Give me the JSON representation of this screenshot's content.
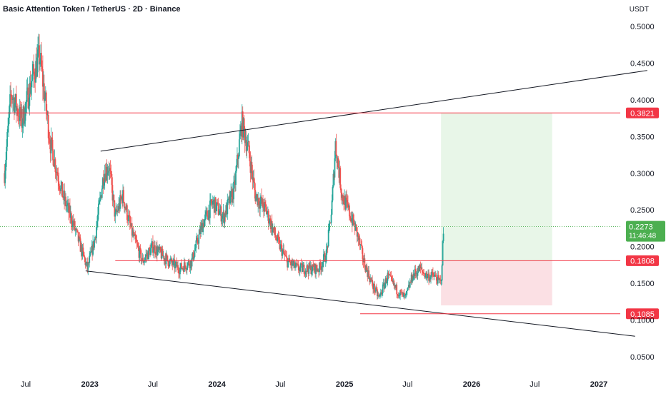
{
  "chart_data": {
    "type": "candlestick",
    "title": "Basic Attention Token / TetherUS · 2D · Binance",
    "unit": "USDT",
    "ylim": [
      0.02,
      0.52
    ],
    "y_ticks": [
      "0.5000",
      "0.4500",
      "0.4000",
      "0.3500",
      "0.3000",
      "0.2500",
      "0.2000",
      "0.1500",
      "0.1000",
      "0.0500"
    ],
    "y_tick_values": [
      0.5,
      0.45,
      0.4,
      0.35,
      0.3,
      0.25,
      0.2,
      0.15,
      0.1,
      0.05
    ],
    "x_ticks": [
      "Jul",
      "2023",
      "Jul",
      "2024",
      "Jul",
      "2025",
      "Jul",
      "2026",
      "Jul",
      "2027"
    ],
    "x_tick_dates": [
      "2022-07-01",
      "2023-01-01",
      "2023-07-01",
      "2024-01-01",
      "2024-07-01",
      "2025-01-01",
      "2025-07-01",
      "2026-01-01",
      "2026-07-01",
      "2027-01-01"
    ],
    "x_tick_bold": [
      false,
      true,
      false,
      true,
      false,
      true,
      false,
      true,
      false,
      true
    ],
    "colors": {
      "up": "#26a69a",
      "down": "#ef5350",
      "level": "#f23645",
      "trend": "#131722",
      "profit_zone": "#e8f6e8",
      "loss_zone": "#fbe0e4",
      "current_price": "#4caf50"
    },
    "anchors": [
      [
        "2022-05-01",
        0.3
      ],
      [
        "2022-05-20",
        0.41
      ],
      [
        "2022-06-20",
        0.37
      ],
      [
        "2022-07-20",
        0.43
      ],
      [
        "2022-08-10",
        0.46
      ],
      [
        "2022-09-10",
        0.34
      ],
      [
        "2022-10-15",
        0.27
      ],
      [
        "2022-11-15",
        0.23
      ],
      [
        "2022-12-05",
        0.2
      ],
      [
        "2022-12-25",
        0.17
      ],
      [
        "2023-01-15",
        0.21
      ],
      [
        "2023-02-10",
        0.3
      ],
      [
        "2023-02-25",
        0.31
      ],
      [
        "2023-03-15",
        0.24
      ],
      [
        "2023-04-05",
        0.27
      ],
      [
        "2023-05-01",
        0.22
      ],
      [
        "2023-06-01",
        0.18
      ],
      [
        "2023-07-01",
        0.2
      ],
      [
        "2023-08-15",
        0.18
      ],
      [
        "2023-09-15",
        0.17
      ],
      [
        "2023-10-20",
        0.18
      ],
      [
        "2023-11-20",
        0.23
      ],
      [
        "2023-12-20",
        0.26
      ],
      [
        "2024-01-20",
        0.24
      ],
      [
        "2024-02-20",
        0.28
      ],
      [
        "2024-03-12",
        0.37
      ],
      [
        "2024-04-01",
        0.33
      ],
      [
        "2024-04-20",
        0.27
      ],
      [
        "2024-05-20",
        0.25
      ],
      [
        "2024-06-20",
        0.21
      ],
      [
        "2024-07-20",
        0.18
      ],
      [
        "2024-08-20",
        0.17
      ],
      [
        "2024-09-20",
        0.17
      ],
      [
        "2024-10-20",
        0.17
      ],
      [
        "2024-11-10",
        0.19
      ],
      [
        "2024-11-25",
        0.25
      ],
      [
        "2024-12-06",
        0.34
      ],
      [
        "2024-12-25",
        0.27
      ],
      [
        "2025-01-20",
        0.24
      ],
      [
        "2025-02-05",
        0.22
      ],
      [
        "2025-02-25",
        0.18
      ],
      [
        "2025-03-20",
        0.15
      ],
      [
        "2025-04-10",
        0.13
      ],
      [
        "2025-05-05",
        0.16
      ],
      [
        "2025-06-01",
        0.14
      ],
      [
        "2025-06-25",
        0.13
      ],
      [
        "2025-07-15",
        0.16
      ],
      [
        "2025-08-05",
        0.17
      ],
      [
        "2025-08-25",
        0.16
      ],
      [
        "2025-09-15",
        0.16
      ],
      [
        "2025-10-05",
        0.15
      ],
      [
        "2025-10-12",
        0.22
      ]
    ],
    "horizontal_levels": [
      {
        "price": 0.3821,
        "label": "0.3821",
        "from": "2022-01-01",
        "to": "2027-06-01"
      },
      {
        "price": 0.1808,
        "label": "0.1808",
        "from": "2023-03-15",
        "to": "2027-06-01"
      },
      {
        "price": 0.1085,
        "label": "0.1085",
        "from": "2025-02-15",
        "to": "2027-06-01"
      }
    ],
    "trendlines": [
      {
        "from": [
          "2023-02-01",
          0.33
        ],
        "to": [
          "2027-05-20",
          0.44
        ]
      },
      {
        "from": [
          "2022-12-20",
          0.167
        ],
        "to": [
          "2027-04-15",
          0.078
        ]
      }
    ],
    "position": {
      "start": "2025-10-05",
      "end": "2026-08-20",
      "entry": 0.1808,
      "target": 0.3821,
      "stop": 0.12
    },
    "current_price": {
      "value": 0.2273,
      "label": "0.2273",
      "countdown": "11:46:48"
    }
  }
}
